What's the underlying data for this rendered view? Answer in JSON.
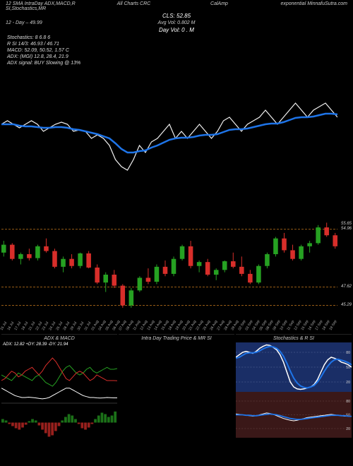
{
  "header": {
    "left": "12 SMA IntraDay ADX,MACD,R     SI,Stochastics,MR",
    "mid1": "All Charts CRC",
    "mid2": "CalAmp",
    "right": "exponential MinnafuSutra.com",
    "cls": "CLS: 52.85",
    "avg": "Avg Vol: 0.802 M",
    "dayvol": "Day Vol: 0 . M",
    "line12": "12 - Day – 49.99"
  },
  "info": {
    "stoch": "Stochastics: 8        6.8        6",
    "rsi": "R     SI 14/3: 46.93 / 46.71",
    "macd": "MACD: 52.09, 50.52, 1.57 C",
    "adx": "ADX:                       (MGI) 12.8, 28.4, 21.9",
    "adxsig": "ADX signal:                             BUY Slowing @ 13%"
  },
  "colors": {
    "bg": "#000000",
    "ma_blue": "#1e74e8",
    "price_white": "#f0f0f0",
    "candle_up": "#26a122",
    "candle_dn": "#d82e2a",
    "grid": "#444444",
    "orange": "#c77a1e",
    "rsi_blue": "#2a6fd6",
    "stoch_white": "#e8e8e8",
    "navy": "#1a2e66",
    "darkred": "#3a1818"
  },
  "main_chart": {
    "type": "line",
    "ylim": [
      40,
      60
    ],
    "price": [
      52,
      52.5,
      52,
      51.5,
      52,
      52.5,
      52,
      51,
      51.5,
      52,
      52.3,
      52,
      51,
      51.2,
      51,
      50,
      50.5,
      50,
      49,
      47,
      46,
      45.5,
      47,
      49,
      48,
      49.5,
      50,
      51,
      52,
      50,
      51,
      50,
      51,
      52,
      51,
      50,
      51,
      52.5,
      53,
      52,
      51,
      52,
      52.5,
      53,
      54,
      53,
      52,
      53,
      54,
      55,
      54,
      53,
      54,
      54.5,
      55,
      54,
      53
    ],
    "ma": [
      52,
      52,
      52,
      51.8,
      51.7,
      51.7,
      51.6,
      51.5,
      51.5,
      51.6,
      51.6,
      51.5,
      51.3,
      51.2,
      51,
      50.8,
      50.6,
      50.3,
      50,
      49.3,
      48.5,
      48,
      48,
      48.2,
      48.3,
      48.7,
      49,
      49.4,
      49.8,
      50,
      50.1,
      50.1,
      50.2,
      50.4,
      50.5,
      50.5,
      50.6,
      50.9,
      51.2,
      51.3,
      51.3,
      51.4,
      51.6,
      51.8,
      52,
      52.1,
      52.1,
      52.3,
      52.6,
      52.9,
      53,
      53,
      53.1,
      53.3,
      53.5,
      53.5,
      53.4
    ]
  },
  "candles": {
    "type": "candlestick",
    "ylim": [
      44,
      57
    ],
    "ylabels": [
      {
        "v": 55.65,
        "t": "55.65"
      },
      {
        "v": 54.96,
        "t": "54.96"
      },
      {
        "v": 47.62,
        "t": "47.62"
      },
      {
        "v": 45.29,
        "t": "45.29"
      }
    ],
    "hlines": [
      54.96,
      47.62,
      45.29
    ],
    "data": [
      [
        52,
        53.5,
        51.5,
        53,
        1
      ],
      [
        53,
        53.2,
        51,
        51.2,
        0
      ],
      [
        51.2,
        52,
        50.5,
        51.8,
        1
      ],
      [
        51.8,
        52.5,
        51,
        51.3,
        0
      ],
      [
        51.3,
        53,
        51,
        52.8,
        1
      ],
      [
        52.8,
        53.8,
        52,
        52.2,
        0
      ],
      [
        52.2,
        52.5,
        50,
        50.2,
        0
      ],
      [
        50.2,
        51.5,
        49.5,
        51.2,
        1
      ],
      [
        51.2,
        51.8,
        50,
        50.3,
        0
      ],
      [
        50.3,
        52,
        50,
        51.9,
        1
      ],
      [
        51.9,
        52.2,
        50,
        50.1,
        0
      ],
      [
        50.1,
        50.5,
        48,
        48.2,
        0
      ],
      [
        48.2,
        49.5,
        47,
        49.2,
        1
      ],
      [
        49.2,
        49.8,
        47.5,
        47.8,
        0
      ],
      [
        47.8,
        48,
        45,
        45.3,
        0
      ],
      [
        45.3,
        47.5,
        45,
        47.2,
        1
      ],
      [
        47.2,
        49,
        47,
        48.8,
        1
      ],
      [
        48.8,
        50,
        48,
        48.3,
        0
      ],
      [
        48.3,
        50.5,
        48,
        50.2,
        1
      ],
      [
        50.2,
        51,
        49,
        49.3,
        0
      ],
      [
        49.3,
        51.5,
        49,
        51.2,
        1
      ],
      [
        51.2,
        53,
        51,
        52.8,
        1
      ],
      [
        52.8,
        53.5,
        50,
        50.3,
        0
      ],
      [
        50.3,
        51,
        49.5,
        50.8,
        1
      ],
      [
        50.8,
        51.2,
        49,
        49.2,
        0
      ],
      [
        49.2,
        50,
        48.5,
        49.8,
        1
      ],
      [
        49.8,
        51,
        49.5,
        50.9,
        1
      ],
      [
        50.9,
        52,
        50,
        50.2,
        0
      ],
      [
        50.2,
        51.5,
        49,
        49.3,
        0
      ],
      [
        49.3,
        49.8,
        48,
        48.2,
        0
      ],
      [
        48.2,
        50.5,
        48,
        50.3,
        1
      ],
      [
        50.3,
        52,
        50,
        51.8,
        1
      ],
      [
        51.8,
        54,
        51.5,
        53.8,
        1
      ],
      [
        53.8,
        54.5,
        52,
        52.3,
        0
      ],
      [
        52.3,
        53,
        51,
        51.2,
        0
      ],
      [
        51.2,
        53,
        51,
        52.8,
        1
      ],
      [
        52.8,
        53.5,
        52,
        53.2,
        1
      ],
      [
        53.2,
        55.5,
        53,
        55.2,
        1
      ],
      [
        55.2,
        55.8,
        54,
        54.2,
        0
      ],
      [
        54.2,
        54.5,
        52.5,
        52.8,
        0
      ]
    ]
  },
  "dates": [
    "15 Jul",
    "16 Jul",
    "17 Jul",
    "18 Jul",
    "21 Jul",
    "22 Jul",
    "23 Jul",
    "24 Jul",
    "25 Jul",
    "28 Jul",
    "29 Jul",
    "30 Jul",
    "31 Jul",
    "01 Aug",
    "04 Aug",
    "05 Aug",
    "06 Aug",
    "07 Aug",
    "08 Aug",
    "11 Aug",
    "12 Aug",
    "13 Aug",
    "14 Aug",
    "15 Aug",
    "18 Aug",
    "19 Aug",
    "20 Aug",
    "21 Aug",
    "22 Aug",
    "25 Aug",
    "26 Aug",
    "27 Aug",
    "28 Aug",
    "29 Aug",
    "02 Sep",
    "03 Sep",
    "04 Sep",
    "05 Sep",
    "08 Sep",
    "09 Sep",
    "10 Sep",
    "11 Sep",
    "12 Sep",
    "15 Sep",
    "16 Sep",
    "17 Sep",
    "18 Sep",
    "19 Sep"
  ],
  "panel_adx": {
    "title": "ADX & MACD",
    "sub": "ADX: 12.82  +DY: 28.39 -DY: 21.94",
    "adx": [
      18,
      17,
      16,
      15,
      14,
      13.5,
      13,
      13,
      13.2,
      13,
      12.8,
      12.5,
      12.3,
      12.5,
      13,
      14,
      15,
      16,
      17,
      18,
      18,
      17,
      16,
      15,
      14,
      13.5,
      13,
      13,
      12.8,
      12.7,
      12.8,
      13,
      12.9,
      12.8,
      12.82
    ],
    "pdy": [
      25,
      24,
      23,
      22,
      24,
      26,
      25,
      24,
      23,
      22,
      24,
      25,
      23,
      21,
      20,
      19,
      21,
      24,
      27,
      29,
      30,
      28,
      26,
      25,
      26,
      28,
      29,
      27,
      26,
      27,
      28,
      29,
      28,
      28,
      28.39
    ],
    "ndy": [
      22,
      23,
      25,
      27,
      26,
      24,
      25,
      27,
      28,
      29,
      27,
      25,
      27,
      30,
      32,
      34,
      32,
      29,
      26,
      23,
      22,
      24,
      26,
      27,
      26,
      24,
      22,
      23,
      25,
      24,
      23,
      22,
      22,
      22,
      21.94
    ],
    "macd_hist": [
      0.5,
      0.3,
      -0.2,
      -0.5,
      -0.8,
      -1.0,
      -0.7,
      -0.3,
      0.2,
      0.5,
      0.3,
      -0.4,
      -1.0,
      -1.5,
      -2.0,
      -1.8,
      -1.2,
      -0.5,
      0.3,
      0.8,
      1.2,
      1.0,
      0.5,
      -0.2,
      -0.8,
      -1.0,
      -0.7,
      -0.2,
      0.5,
      1.0,
      1.4,
      1.2,
      0.8,
      1.0,
      1.57
    ]
  },
  "panel_intra": {
    "title": "Intra   Day Trading Price   & MR     SI"
  },
  "panel_stoch": {
    "title": "Stochastics & R     SI",
    "yticks": [
      80,
      50,
      20
    ],
    "stoch_k": [
      70,
      75,
      80,
      82,
      80,
      78,
      82,
      88,
      92,
      95,
      94,
      90,
      85,
      75,
      60,
      40,
      20,
      10,
      6,
      5,
      6,
      8,
      10,
      15,
      25,
      40,
      55,
      65,
      70,
      68,
      65,
      60,
      58,
      55,
      50
    ],
    "stoch_d": [
      68,
      70,
      74,
      78,
      79,
      79,
      80,
      83,
      87,
      90,
      92,
      91,
      88,
      82,
      72,
      58,
      42,
      28,
      18,
      12,
      9,
      8,
      10,
      13,
      20,
      30,
      42,
      52,
      60,
      65,
      66,
      64,
      62,
      59,
      55
    ],
    "rsi": [
      52,
      51,
      50,
      49,
      48,
      47,
      48,
      50,
      52,
      54,
      53,
      51,
      48,
      45,
      42,
      40,
      38,
      37,
      38,
      40,
      42,
      44,
      45,
      46,
      47,
      48,
      49,
      50,
      51,
      50,
      49,
      48,
      47,
      47,
      46.93
    ],
    "rsi_sig": [
      50,
      50,
      50,
      49,
      49,
      48,
      48,
      49,
      50,
      51,
      52,
      51,
      50,
      48,
      46,
      44,
      42,
      41,
      40,
      40,
      41,
      42,
      43,
      44,
      45,
      46,
      47,
      48,
      49,
      49,
      49,
      48,
      48,
      47,
      46.71
    ]
  }
}
